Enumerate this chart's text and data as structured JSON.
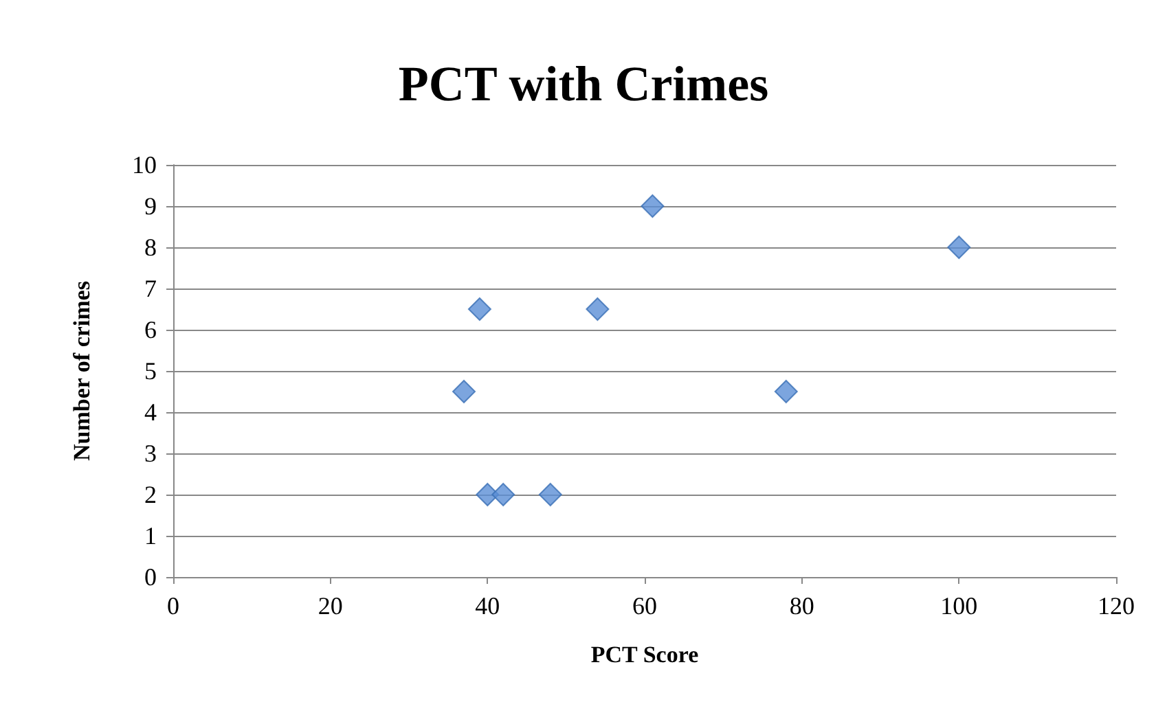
{
  "chart_data": {
    "type": "scatter",
    "title": "PCT with Crimes",
    "xlabel": "PCT Score",
    "ylabel": "Number of crimes",
    "x": [
      39,
      37,
      40,
      42,
      48,
      54,
      61,
      78,
      100
    ],
    "values": [
      6.5,
      4.5,
      2,
      2,
      2,
      6.5,
      9,
      4.5,
      8
    ],
    "color": "#5b8fd6",
    "xlim": [
      0,
      120
    ],
    "xticks": [
      0,
      20,
      40,
      60,
      80,
      100,
      120
    ],
    "ylim": [
      0,
      10
    ],
    "yticks": [
      0,
      1,
      2,
      3,
      4,
      5,
      6,
      7,
      8,
      9,
      10
    ],
    "grid": "y",
    "marker": "diamond"
  }
}
